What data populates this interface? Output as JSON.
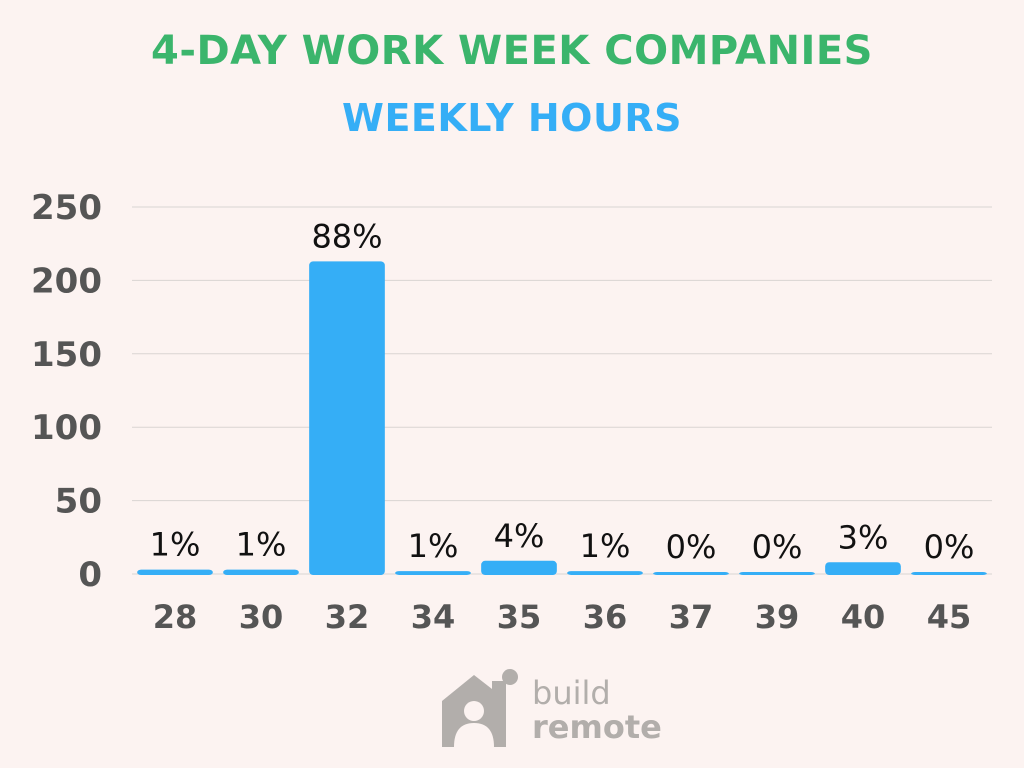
{
  "header": {
    "title": "4-DAY WORK WEEK COMPANIES",
    "subtitle": "WEEKLY HOURS"
  },
  "colors": {
    "title": "#3bb56c",
    "subtitle": "#35aef6",
    "bar": "#35aef6",
    "axis_text": "#555555",
    "grid": "#d9d4d2",
    "logo": "#b2aeab"
  },
  "logo": {
    "icon": "house-person-icon",
    "line1": "build",
    "line2": "remote"
  },
  "chart_data": {
    "type": "bar",
    "categories": [
      "28",
      "30",
      "32",
      "34",
      "35",
      "36",
      "37",
      "39",
      "40",
      "45"
    ],
    "values": [
      3,
      3,
      213,
      2,
      9,
      2,
      1,
      1,
      8,
      1
    ],
    "data_labels": [
      "1%",
      "1%",
      "88%",
      "1%",
      "4%",
      "1%",
      "0%",
      "0%",
      "3%",
      "0%"
    ],
    "yticks": [
      "0",
      "50",
      "100",
      "150",
      "200",
      "250"
    ],
    "ylim": [
      0,
      250
    ],
    "grid": true
  }
}
